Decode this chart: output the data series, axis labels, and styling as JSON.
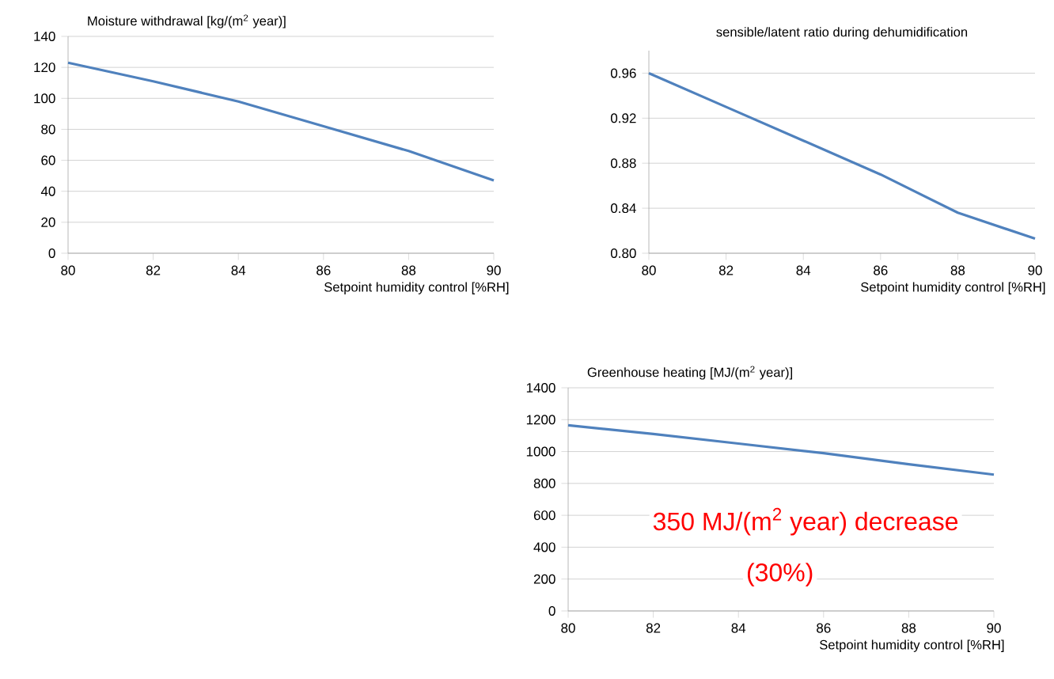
{
  "chart_data": [
    {
      "type": "line",
      "title": "Moisture withdrawal [kg/(m$^{2}$ year)]",
      "xlabel": "Setpoint humidity control [%RH]",
      "x": [
        80,
        82,
        84,
        86,
        88,
        90
      ],
      "series": [
        {
          "color": "#4f81bd",
          "values": [
            123,
            111,
            98,
            82,
            66,
            47
          ]
        }
      ],
      "xlim": [
        80,
        90
      ],
      "xticks": [
        80,
        82,
        84,
        86,
        88,
        90
      ],
      "ylim": [
        0,
        140
      ],
      "yticks": [
        0,
        20,
        40,
        60,
        80,
        100,
        120,
        140
      ],
      "grid": "y"
    },
    {
      "type": "line",
      "title": "sensible/latent ratio during dehumidification",
      "xlabel": "Setpoint humidity control [%RH]",
      "x": [
        80,
        82,
        84,
        86,
        88,
        90
      ],
      "series": [
        {
          "color": "#4f81bd",
          "values": [
            0.96,
            0.93,
            0.9,
            0.87,
            0.836,
            0.813
          ]
        }
      ],
      "xlim": [
        80,
        90
      ],
      "xticks": [
        80,
        82,
        84,
        86,
        88,
        90
      ],
      "ylim": [
        0.8,
        0.98
      ],
      "yticks": [
        {
          "value": 0.8,
          "label": "0.80"
        },
        {
          "value": 0.84,
          "label": "0.84"
        },
        {
          "value": 0.88,
          "label": "0.88"
        },
        {
          "value": 0.92,
          "label": "0.92"
        },
        {
          "value": 0.96,
          "label": "0.96"
        }
      ],
      "grid": "y"
    },
    {
      "type": "line",
      "title": "Greenhouse heating  [MJ/(m$^{2}$ year)]",
      "xlabel": "Setpoint humidity control [%RH]",
      "x": [
        80,
        82,
        84,
        86,
        88,
        90
      ],
      "series": [
        {
          "color": "#4f81bd",
          "values": [
            1165,
            1110,
            1050,
            990,
            920,
            855
          ]
        }
      ],
      "xlim": [
        80,
        90
      ],
      "xticks": [
        80,
        82,
        84,
        86,
        88,
        90
      ],
      "ylim": [
        0,
        1400
      ],
      "yticks": [
        0,
        200,
        400,
        600,
        800,
        1000,
        1200,
        1400
      ],
      "grid": "y",
      "annotations": [
        "350 MJ/(m$^{2}$ year) decrease",
        "(30%)"
      ]
    }
  ]
}
